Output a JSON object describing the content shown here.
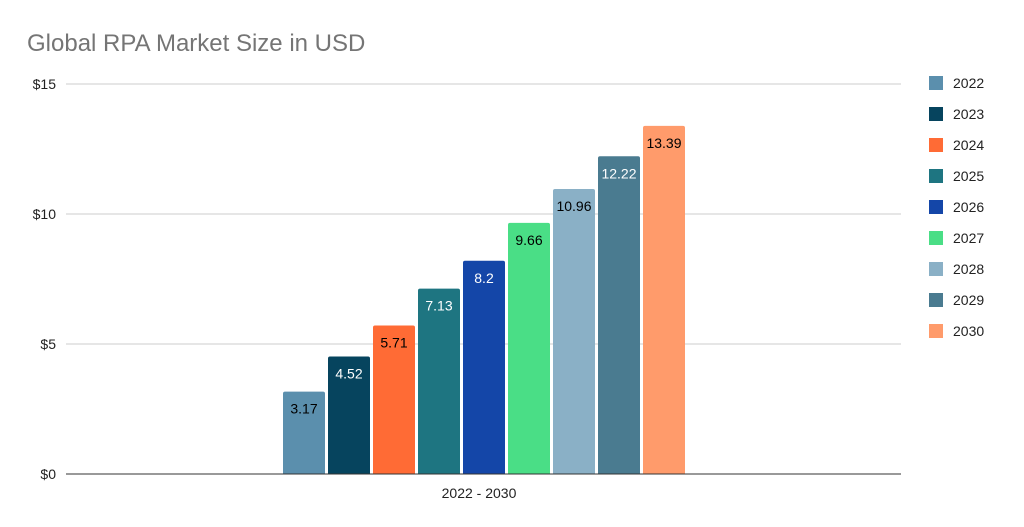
{
  "chart_data": {
    "type": "bar",
    "title": "Global RPA Market Size in USD",
    "xlabel": "",
    "ylabel": "",
    "categories": [
      "2022 - 2030"
    ],
    "series": [
      {
        "name": "2022",
        "value": 3.17,
        "color": "#5b8fad",
        "label_color": "#000000"
      },
      {
        "name": "2023",
        "value": 4.52,
        "color": "#06445e",
        "label_color": "#ffffff"
      },
      {
        "name": "2024",
        "value": 5.71,
        "color": "#ff6b35",
        "label_color": "#000000"
      },
      {
        "name": "2025",
        "value": 7.13,
        "color": "#1e7581",
        "label_color": "#ffffff"
      },
      {
        "name": "2026",
        "value": 8.2,
        "color": "#1446a8",
        "label_color": "#ffffff"
      },
      {
        "name": "2027",
        "value": 9.66,
        "color": "#4ade86",
        "label_color": "#000000"
      },
      {
        "name": "2028",
        "value": 10.96,
        "color": "#8ab0c6",
        "label_color": "#000000"
      },
      {
        "name": "2029",
        "value": 12.22,
        "color": "#4a7b90",
        "label_color": "#ffffff"
      },
      {
        "name": "2030",
        "value": 13.39,
        "color": "#ff9b6b",
        "label_color": "#000000"
      }
    ],
    "ylim": [
      0,
      15
    ],
    "yticks": [
      {
        "value": 0,
        "label": "$0"
      },
      {
        "value": 5,
        "label": "$5"
      },
      {
        "value": 10,
        "label": "$10"
      },
      {
        "value": 15,
        "label": "$15"
      }
    ],
    "grid": true,
    "legend": "right"
  }
}
